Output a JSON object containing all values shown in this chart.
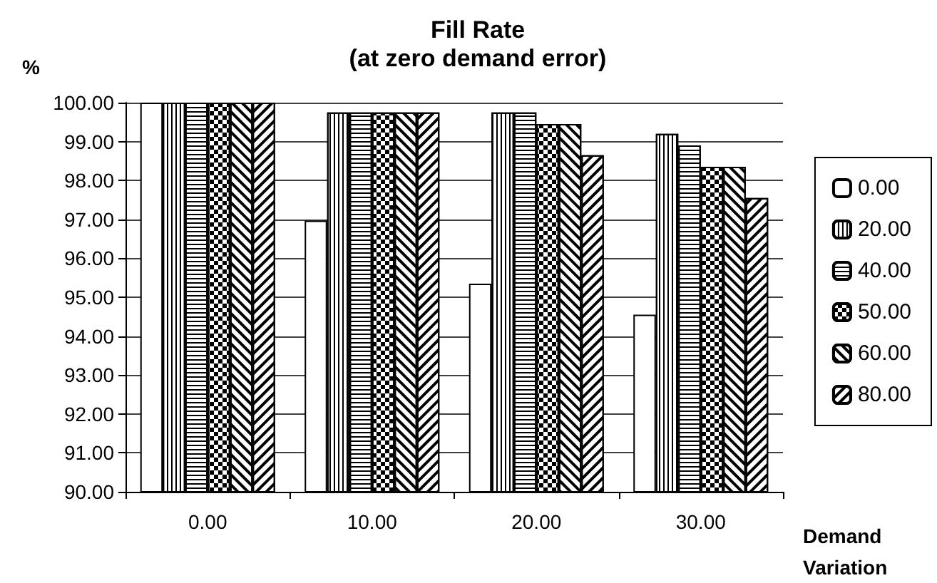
{
  "chart_data": {
    "type": "bar",
    "title": "Fill Rate\n(at zero demand error)",
    "ylabel": "%",
    "xlabel": "Demand\nVariation",
    "categories": [
      "0.00",
      "10.00",
      "20.00",
      "30.00"
    ],
    "series": [
      {
        "name": "0.00",
        "color": "#ffffff",
        "values": [
          100,
          96.97,
          95.35,
          94.55
        ]
      },
      {
        "name": "20.00",
        "color": "#ffffff",
        "values": [
          100,
          99.75,
          99.75,
          99.2
        ]
      },
      {
        "name": "40.00",
        "color": "#ffffff",
        "values": [
          100,
          99.75,
          99.75,
          98.9
        ]
      },
      {
        "name": "50.00",
        "color": "#ffffff",
        "values": [
          100,
          99.75,
          99.45,
          98.35
        ]
      },
      {
        "name": "60.00",
        "color": "#ffffff",
        "values": [
          100,
          99.75,
          99.45,
          98.35
        ]
      },
      {
        "name": "80.00",
        "color": "#ffffff",
        "values": [
          100,
          99.75,
          98.65,
          97.55
        ]
      }
    ],
    "ylim": [
      90,
      100
    ],
    "yticks": [
      {
        "value": 90,
        "label": "90.00"
      },
      {
        "value": 91,
        "label": "91.00"
      },
      {
        "value": 92,
        "label": "92.00"
      },
      {
        "value": 93,
        "label": "93.00"
      },
      {
        "value": 94,
        "label": "94.00"
      },
      {
        "value": 95,
        "label": "95.00"
      },
      {
        "value": 96,
        "label": "96.00"
      },
      {
        "value": 97,
        "label": "97.00"
      },
      {
        "value": 98,
        "label": "98.00"
      },
      {
        "value": 99,
        "label": "99.00"
      },
      {
        "value": 100,
        "label": "100.00"
      }
    ],
    "grid": "y",
    "legend": "right"
  }
}
